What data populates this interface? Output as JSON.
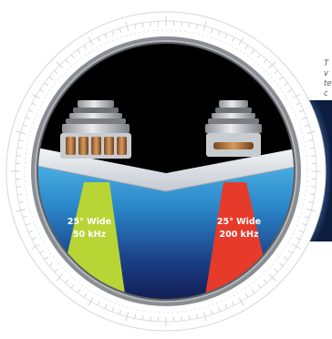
{
  "colors": {
    "sky": "#000000",
    "water_top": "#4fb3e4",
    "water_mid": "#1d6fb3",
    "water_bottom": "#13184a",
    "hull": "#dfe4ea",
    "bezel": "#8a8d92",
    "beam_left": "#b9d435",
    "beam_right": "#e63a2a",
    "label_text": "#ffffff"
  },
  "transducers": [
    {
      "id": "left",
      "label_angle": "25° Wide",
      "label_freq": "50 kHz",
      "beam_color": "#b9d435",
      "icon": "transducer-wide-element-icon"
    },
    {
      "id": "right",
      "label_angle": "25° Wide",
      "label_freq": "200 kHz",
      "beam_color": "#e63a2a",
      "icon": "transducer-narrow-element-icon"
    }
  ],
  "side_text": {
    "lines": [
      "T",
      "v",
      "te",
      "c"
    ]
  },
  "icons": {
    "bezel": "compass-ring-icon",
    "side_graphic": "sonar-display-graphic"
  }
}
